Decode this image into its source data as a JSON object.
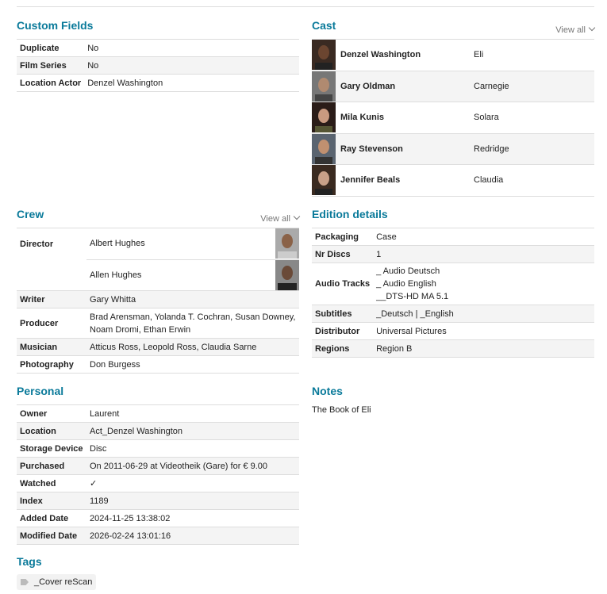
{
  "custom_fields": {
    "title": "Custom Fields",
    "rows": [
      {
        "k": "Duplicate",
        "v": "No"
      },
      {
        "k": "Film Series",
        "v": "No"
      },
      {
        "k": "Location Actor",
        "v": "Denzel Washington"
      }
    ]
  },
  "cast": {
    "title": "Cast",
    "view_all": "View all",
    "rows": [
      {
        "name": "Denzel Washington",
        "role": "Eli"
      },
      {
        "name": "Gary Oldman",
        "role": "Carnegie"
      },
      {
        "name": "Mila Kunis",
        "role": "Solara"
      },
      {
        "name": "Ray Stevenson",
        "role": "Redridge"
      },
      {
        "name": "Jennifer Beals",
        "role": "Claudia"
      }
    ]
  },
  "crew": {
    "title": "Crew",
    "view_all": "View all",
    "director_label": "Director",
    "directors": [
      "Albert Hughes",
      "Allen Hughes"
    ],
    "rows": [
      {
        "k": "Writer",
        "v": "Gary Whitta"
      },
      {
        "k": "Producer",
        "v": "Brad Arensman, Yolanda T. Cochran, Susan Downey, Noam Dromi, Ethan Erwin"
      },
      {
        "k": "Musician",
        "v": "Atticus Ross, Leopold Ross, Claudia Sarne"
      },
      {
        "k": "Photography",
        "v": "Don Burgess"
      }
    ]
  },
  "edition": {
    "title": "Edition details",
    "rows": [
      {
        "k": "Packaging",
        "v": "Case"
      },
      {
        "k": "Nr Discs",
        "v": "1"
      },
      {
        "k": "Audio Tracks",
        "v": [
          "_ Audio Deutsch",
          "_ Audio English",
          "__DTS-HD MA 5.1"
        ]
      },
      {
        "k": "Subtitles",
        "v": "_Deutsch | _English"
      },
      {
        "k": "Distributor",
        "v": "Universal Pictures"
      },
      {
        "k": "Regions",
        "v": "Region B"
      }
    ]
  },
  "personal": {
    "title": "Personal",
    "rows": [
      {
        "k": "Owner",
        "v": "Laurent"
      },
      {
        "k": "Location",
        "v": "Act_Denzel Washington"
      },
      {
        "k": "Storage Device",
        "v": "Disc"
      },
      {
        "k": "Purchased",
        "v": "On 2011-06-29 at Videotheik (Gare) for € 9.00"
      },
      {
        "k": "Watched",
        "v": "✓"
      },
      {
        "k": "Index",
        "v": "1189"
      },
      {
        "k": "Added Date",
        "v": "2024-11-25 13:38:02"
      },
      {
        "k": "Modified Date",
        "v": "2026-02-24 13:01:16"
      }
    ]
  },
  "notes": {
    "title": "Notes",
    "text": "The Book of Eli"
  },
  "tags": {
    "title": "Tags",
    "items": [
      "_Cover reScan"
    ]
  },
  "colors": {
    "heading": "#0a7a9a",
    "stripe": "#f4f4f4"
  }
}
